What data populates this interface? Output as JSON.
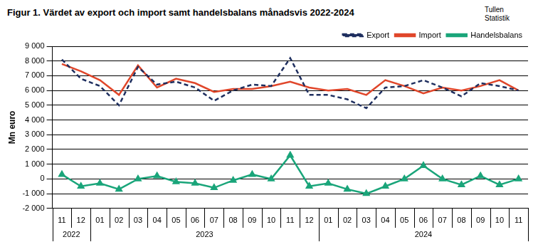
{
  "chart_data": {
    "type": "line",
    "title": "Figur 1. Värdet av export och import samt handelsbalans månadsvis 2022-2024",
    "source": [
      "Tullen",
      "Statistik"
    ],
    "y_label": "Mn euro",
    "categories": [
      "11",
      "12",
      "01",
      "02",
      "03",
      "04",
      "05",
      "06",
      "07",
      "08",
      "09",
      "10",
      "11",
      "12",
      "01",
      "02",
      "03",
      "04",
      "05",
      "06",
      "07",
      "08",
      "09",
      "10",
      "11"
    ],
    "category_groups": [
      {
        "label": "2022",
        "count": 2
      },
      {
        "label": "2023",
        "count": 12
      },
      {
        "label": "2024",
        "count": 11
      }
    ],
    "series": [
      {
        "name": "Export",
        "color": "#1f2f5f",
        "line_style": "dashed",
        "marker": "none",
        "values": [
          8100,
          6800,
          6300,
          5000,
          7600,
          6400,
          6600,
          6200,
          5300,
          6000,
          6400,
          6300,
          8200,
          5700,
          5700,
          5400,
          4800,
          6200,
          6300,
          6700,
          6200,
          5600,
          6500,
          6300,
          6000
        ]
      },
      {
        "name": "Import",
        "color": "#e0462a",
        "line_style": "solid",
        "marker": "none",
        "values": [
          7800,
          7300,
          6700,
          5700,
          7700,
          6200,
          6800,
          6500,
          5900,
          6100,
          6100,
          6300,
          6600,
          6200,
          6000,
          6100,
          5700,
          6700,
          6300,
          5800,
          6200,
          6000,
          6300,
          6700,
          6000
        ]
      },
      {
        "name": "Handelsbalans",
        "color": "#1aa57a",
        "line_style": "solid",
        "marker": "triangle",
        "values": [
          300,
          -500,
          -300,
          -700,
          0,
          200,
          -200,
          -300,
          -600,
          -100,
          300,
          0,
          1600,
          -500,
          -300,
          -700,
          -1000,
          -500,
          0,
          900,
          0,
          -400,
          200,
          -400,
          0
        ]
      }
    ],
    "ylim": [
      -2000,
      9000
    ],
    "yticks": [
      {
        "value": -2000,
        "label": "-2 000"
      },
      {
        "value": -1000,
        "label": "-1 000"
      },
      0,
      {
        "value": 1000,
        "label": "1 000"
      },
      {
        "value": 2000,
        "label": "2 000"
      },
      {
        "value": 3000,
        "label": "3 000"
      },
      {
        "value": 4000,
        "label": "4 000"
      },
      {
        "value": 5000,
        "label": "5 000"
      },
      {
        "value": 6000,
        "label": "6 000"
      },
      {
        "value": 7000,
        "label": "7 000"
      },
      {
        "value": 8000,
        "label": "8 000"
      },
      {
        "value": 9000,
        "label": "9 000"
      }
    ],
    "grid": true,
    "legend": "top-right"
  }
}
